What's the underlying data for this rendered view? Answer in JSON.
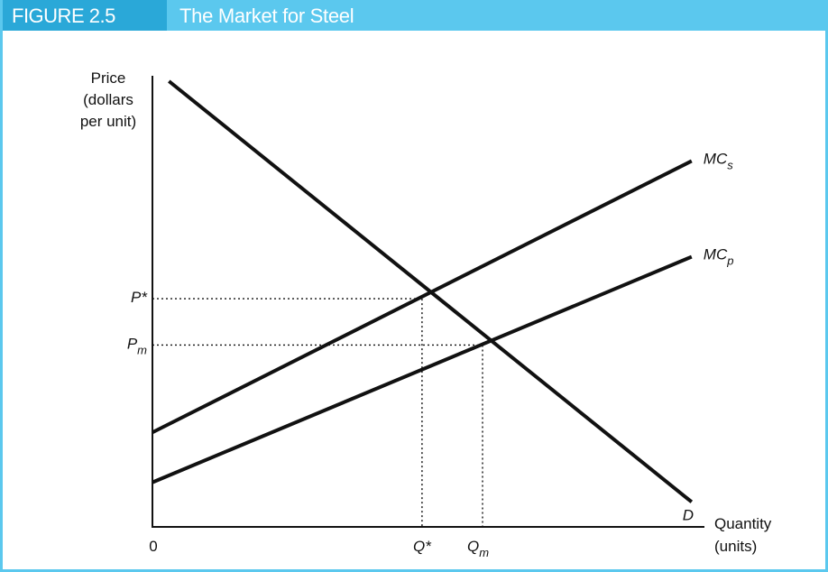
{
  "figure": {
    "number": "FIGURE 2.5",
    "title": "The Market for Steel"
  },
  "colors": {
    "header": "#5bc8ee",
    "figure_number_tab": "#2aa8d8",
    "curve": "#111111"
  },
  "chart_data": {
    "type": "line",
    "title": "The Market for Steel",
    "ylabel_lines": [
      "Price",
      "(dollars",
      "per unit)"
    ],
    "xlabel_lines": [
      "Quantity",
      "(units)"
    ],
    "origin_label": "0",
    "xlim": [
      0,
      10
    ],
    "ylim": [
      0,
      10
    ],
    "grid": false,
    "series": [
      {
        "name": "D",
        "label_main": "D",
        "label_sub": "",
        "x": [
          0.3,
          9.8
        ],
        "y": [
          10.0,
          0.56
        ]
      },
      {
        "name": "MCs",
        "label_main": "MC",
        "label_sub": "s",
        "x": [
          0,
          9.8
        ],
        "y": [
          2.12,
          8.21
        ]
      },
      {
        "name": "MCp",
        "label_main": "MC",
        "label_sub": "p",
        "x": [
          0,
          9.8
        ],
        "y": [
          1.0,
          6.06
        ]
      }
    ],
    "reference_points": [
      {
        "y_label_main": "P*",
        "y_label_sub": "",
        "x_label_main": "Q*",
        "x_label_sub": "",
        "x": 4.9,
        "y": 5.12
      },
      {
        "y_label_main": "P",
        "y_label_sub": "m",
        "x_label_main": "Q",
        "x_label_sub": "m",
        "x": 6.0,
        "y": 4.08
      }
    ]
  }
}
